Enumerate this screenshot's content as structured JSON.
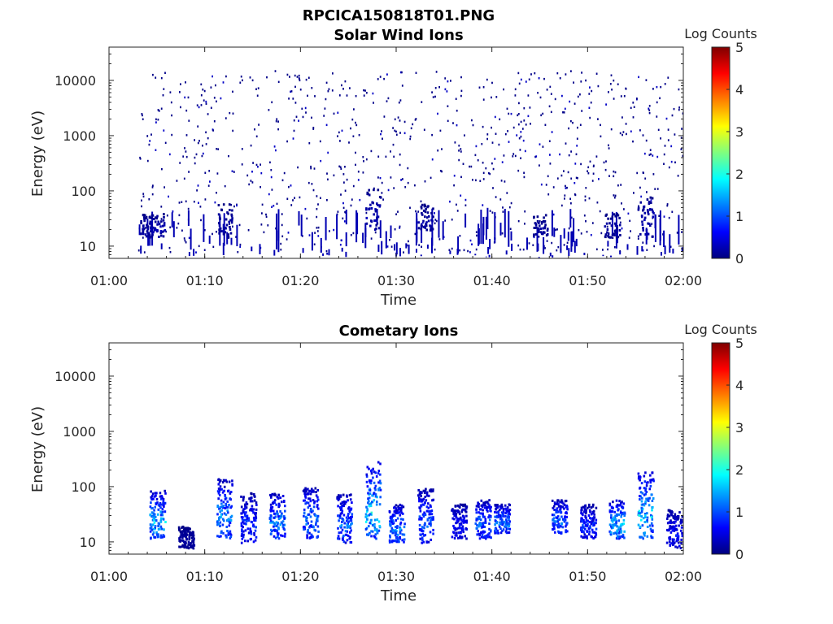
{
  "figure": {
    "title": "RPCICA150818T01.PNG"
  },
  "colormap": {
    "name": "jet",
    "stops": [
      "#00007f",
      "#0000ff",
      "#007fff",
      "#00ffff",
      "#7fff7f",
      "#ffff00",
      "#ff7f00",
      "#ff0000",
      "#7f0000"
    ]
  },
  "chart_data": [
    {
      "type": "heatmap",
      "title": "Solar Wind Ions",
      "xlabel": "Time",
      "ylabel": "Energy (eV)",
      "xlim": [
        "01:00",
        "02:00"
      ],
      "xticks": [
        "01:00",
        "01:10",
        "01:20",
        "01:30",
        "01:40",
        "01:50",
        "02:00"
      ],
      "ylim": [
        6,
        40000
      ],
      "yscale": "log",
      "yticks": [
        "10",
        "100",
        "1000",
        "10000"
      ],
      "colorbar": {
        "label": "Log Counts",
        "min": 0,
        "max": 5,
        "ticks": [
          "0",
          "1",
          "2",
          "3",
          "4",
          "5"
        ]
      },
      "data_window": [
        "01:03",
        "02:00"
      ],
      "description_level": "sparse counts mostly 0-0.4 log counts across 8 eV - 15000 eV",
      "clusters": [
        {
          "time": "01:04",
          "energy_low": 15,
          "energy_high": 40,
          "log_counts": 0.2
        },
        {
          "time": "01:05",
          "energy_low": 15,
          "energy_high": 40,
          "log_counts": 0.3
        },
        {
          "time": "01:12",
          "energy_low": 15,
          "energy_high": 60,
          "log_counts": 0.2
        },
        {
          "time": "01:27.5",
          "energy_low": 20,
          "energy_high": 110,
          "log_counts": 0.3
        },
        {
          "time": "01:33",
          "energy_low": 20,
          "energy_high": 60,
          "log_counts": 0.2
        },
        {
          "time": "01:45",
          "energy_low": 15,
          "energy_high": 40,
          "log_counts": 0.2
        },
        {
          "time": "01:52.5",
          "energy_low": 15,
          "energy_high": 40,
          "log_counts": 0.2
        },
        {
          "time": "01:56",
          "energy_low": 15,
          "energy_high": 90,
          "log_counts": 0.3
        }
      ]
    },
    {
      "type": "heatmap",
      "title": "Cometary Ions",
      "xlabel": "Time",
      "ylabel": "Energy (eV)",
      "xlim": [
        "01:00",
        "02:00"
      ],
      "xticks": [
        "01:00",
        "01:10",
        "01:20",
        "01:30",
        "01:40",
        "01:50",
        "02:00"
      ],
      "ylim": [
        6,
        40000
      ],
      "yscale": "log",
      "yticks": [
        "10",
        "100",
        "1000",
        "10000"
      ],
      "colorbar": {
        "label": "Log Counts",
        "min": 0,
        "max": 5,
        "ticks": [
          "0",
          "1",
          "2",
          "3",
          "4",
          "5"
        ]
      },
      "clusters": [
        {
          "time": "01:05",
          "energy_low": 12,
          "energy_high": 90,
          "log_counts": 1.8
        },
        {
          "time": "01:08",
          "energy_low": 8,
          "energy_high": 20,
          "log_counts": 0.2
        },
        {
          "time": "01:12",
          "energy_low": 12,
          "energy_high": 150,
          "log_counts": 1.5
        },
        {
          "time": "01:14.5",
          "energy_low": 10,
          "energy_high": 80,
          "log_counts": 1.0
        },
        {
          "time": "01:17.5",
          "energy_low": 12,
          "energy_high": 80,
          "log_counts": 1.5
        },
        {
          "time": "01:21",
          "energy_low": 12,
          "energy_high": 100,
          "log_counts": 1.4
        },
        {
          "time": "01:24.5",
          "energy_low": 10,
          "energy_high": 80,
          "log_counts": 1.3
        },
        {
          "time": "01:27.5",
          "energy_low": 12,
          "energy_high": 300,
          "log_counts": 2.0
        },
        {
          "time": "01:30",
          "energy_low": 10,
          "energy_high": 50,
          "log_counts": 1.5
        },
        {
          "time": "01:33",
          "energy_low": 10,
          "energy_high": 100,
          "log_counts": 1.2
        },
        {
          "time": "01:36.5",
          "energy_low": 12,
          "energy_high": 50,
          "log_counts": 0.8
        },
        {
          "time": "01:39",
          "energy_low": 12,
          "energy_high": 60,
          "log_counts": 1.3
        },
        {
          "time": "01:41",
          "energy_low": 15,
          "energy_high": 50,
          "log_counts": 1.4
        },
        {
          "time": "01:47",
          "energy_low": 15,
          "energy_high": 60,
          "log_counts": 1.4
        },
        {
          "time": "01:50",
          "energy_low": 12,
          "energy_high": 50,
          "log_counts": 1.0
        },
        {
          "time": "01:53",
          "energy_low": 12,
          "energy_high": 60,
          "log_counts": 1.8
        },
        {
          "time": "01:56",
          "energy_low": 12,
          "energy_high": 200,
          "log_counts": 1.9
        },
        {
          "time": "01:59",
          "energy_low": 8,
          "energy_high": 40,
          "log_counts": 0.8
        }
      ]
    }
  ]
}
